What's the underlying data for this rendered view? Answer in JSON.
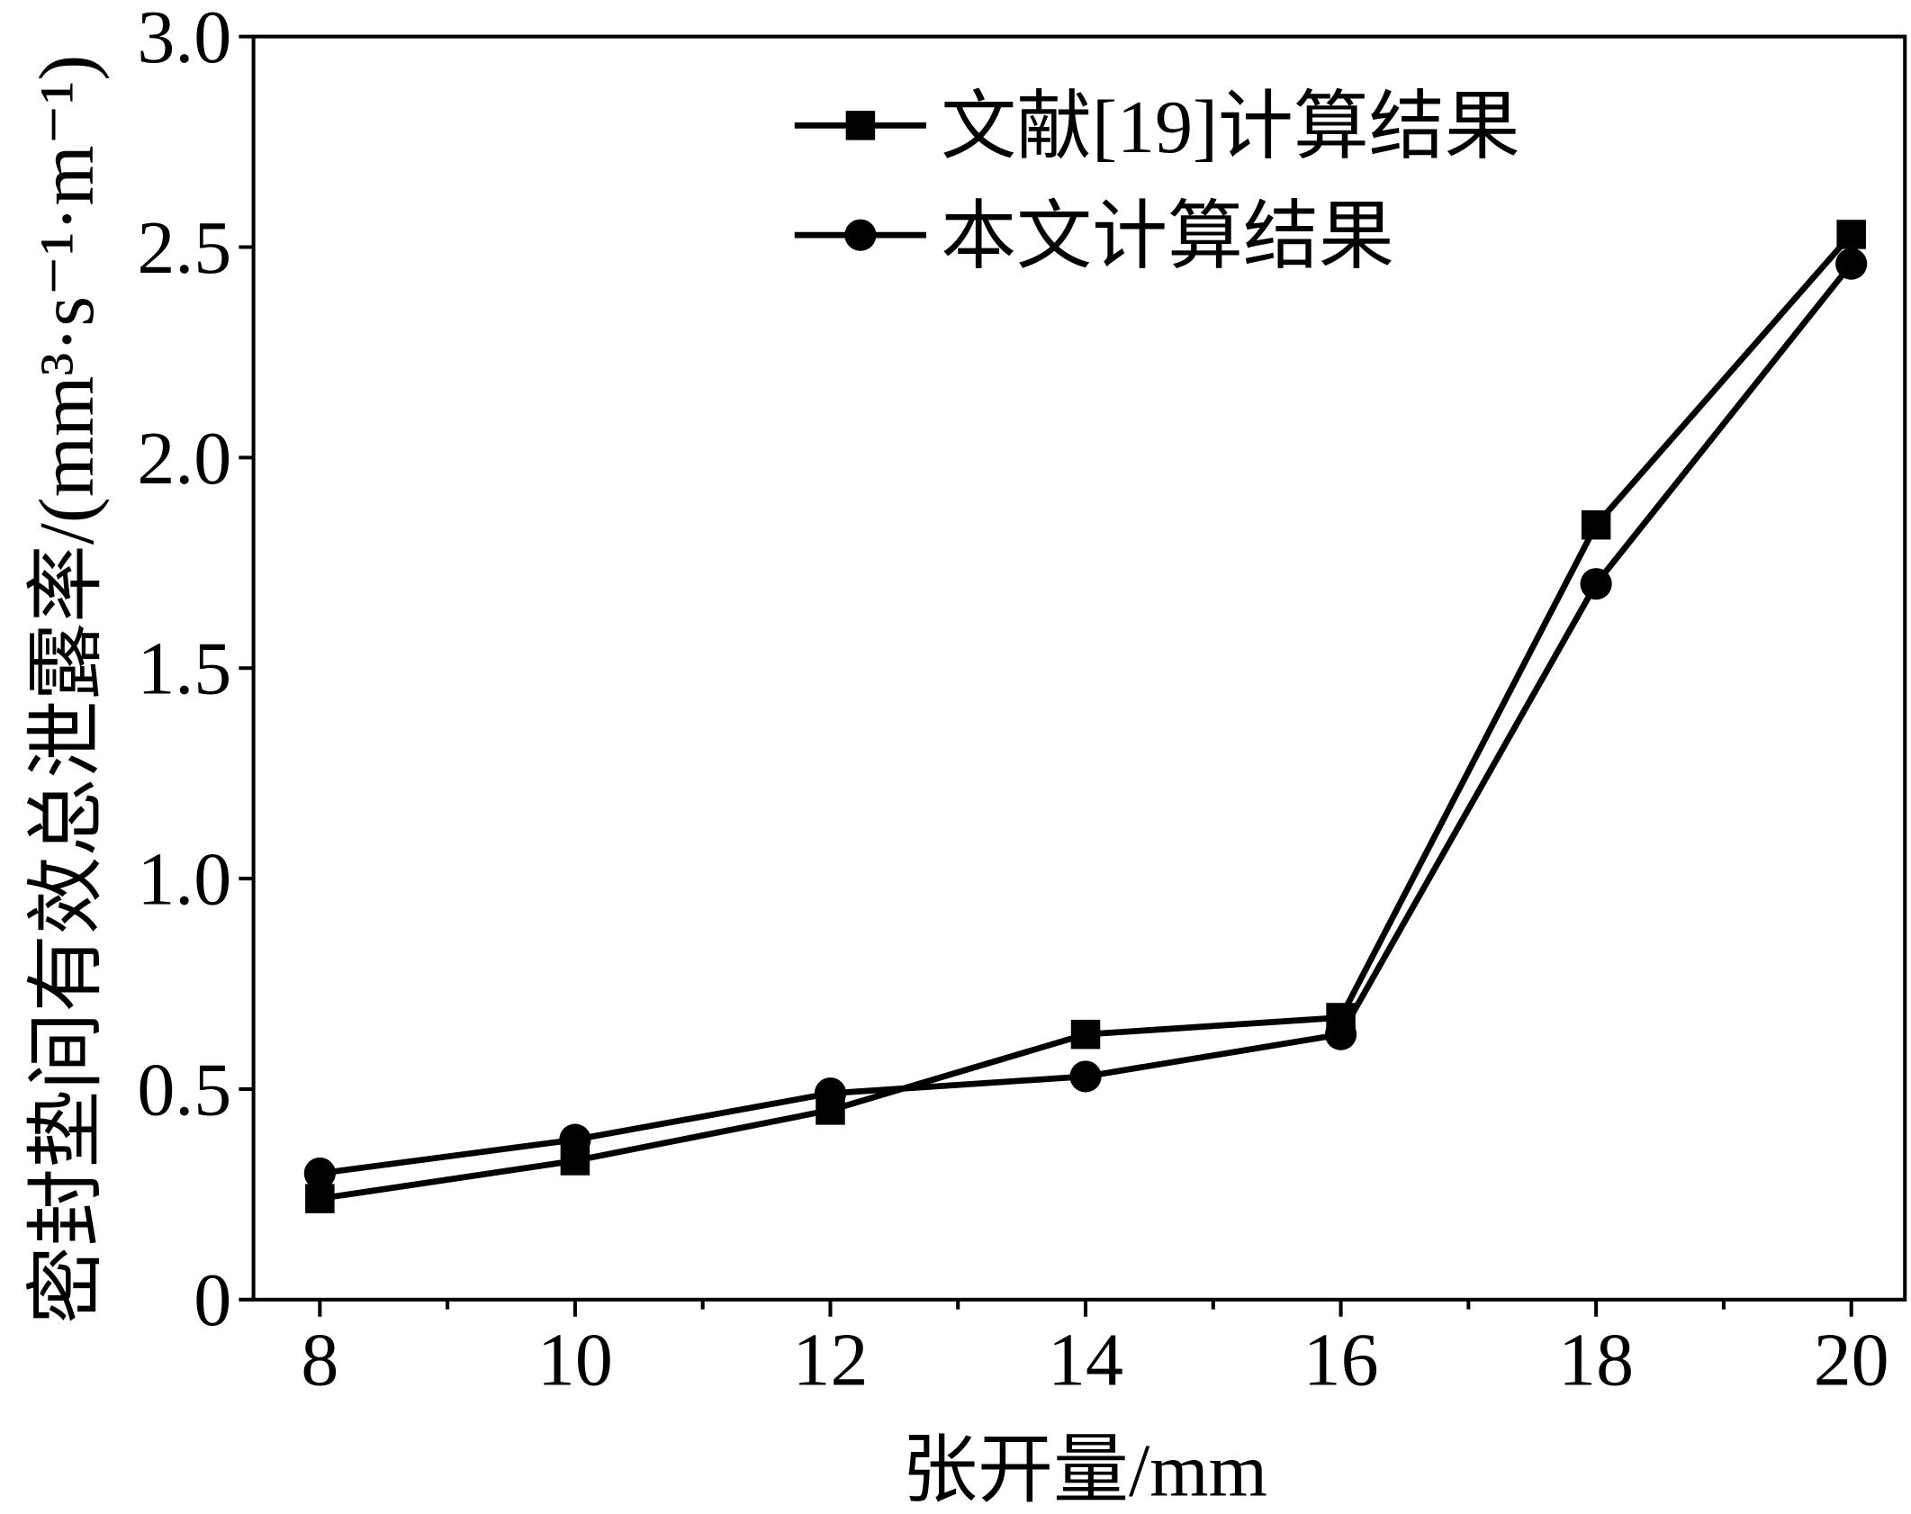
{
  "chart_data": {
    "type": "line",
    "title": "",
    "xlabel": "张开量/mm",
    "ylabel": "密封垫间有效总泄露率/(mm³·s⁻¹·m⁻¹)",
    "x": [
      8,
      10,
      12,
      14,
      16,
      18,
      20
    ],
    "xticks": [
      8,
      10,
      12,
      14,
      16,
      18,
      20
    ],
    "xtick_labels": [
      "8",
      "10",
      "12",
      "14",
      "16",
      "18",
      "20"
    ],
    "xminor_ticks": [
      9,
      11,
      13,
      15,
      17,
      19
    ],
    "yticks": [
      0,
      0.5,
      1.0,
      1.5,
      2.0,
      2.5,
      3.0
    ],
    "ytick_labels": [
      "0",
      "0.5",
      "1.0",
      "1.5",
      "2.0",
      "2.5",
      "3.0"
    ],
    "xlim": [
      7.48,
      20.42
    ],
    "ylim": [
      0,
      3.0
    ],
    "grid": false,
    "legend_position": "top-center",
    "series": [
      {
        "name": "文献[19]计算结果",
        "marker": "square",
        "color": "#000000",
        "values": [
          0.24,
          0.33,
          0.45,
          0.63,
          0.67,
          1.84,
          2.53
        ]
      },
      {
        "name": "本文计算结果",
        "marker": "circle",
        "color": "#000000",
        "values": [
          0.3,
          0.38,
          0.49,
          0.53,
          0.63,
          1.7,
          2.46
        ]
      }
    ]
  }
}
